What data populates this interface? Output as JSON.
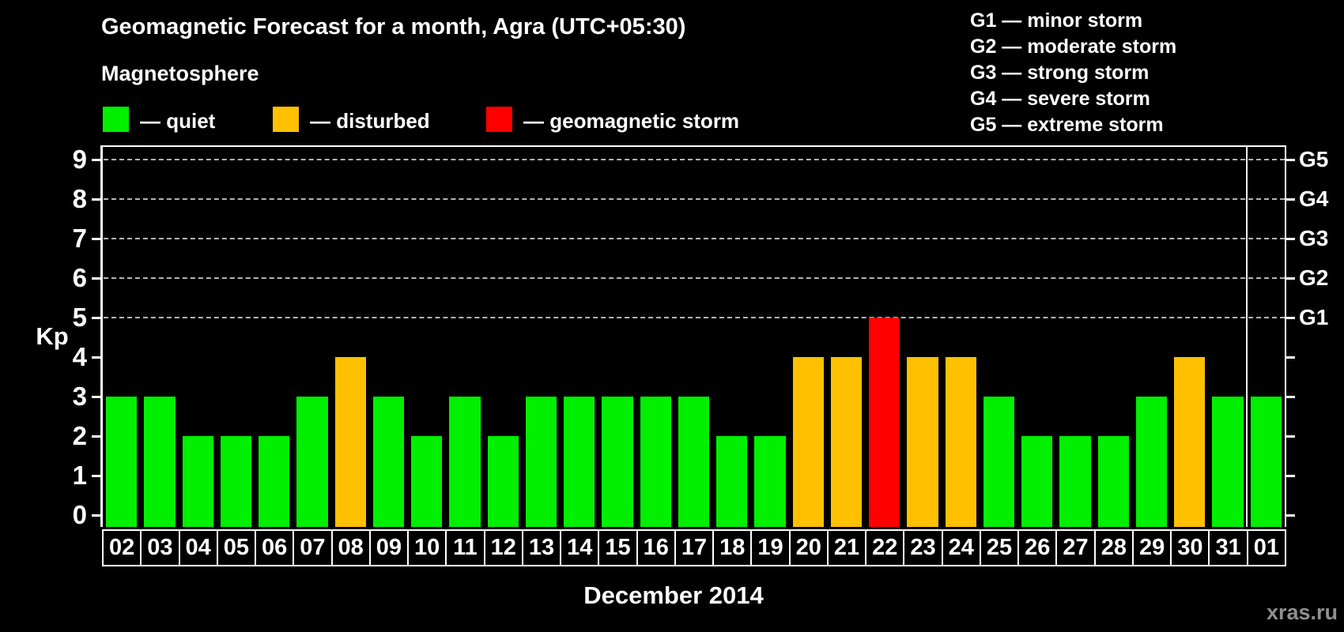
{
  "header": {
    "title": "Geomagnetic Forecast for a month, Agra (UTC+05:30)",
    "subtitle": "Magnetosphere",
    "legend_items": [
      {
        "key": "quiet",
        "label": "— quiet",
        "color": "#00f000"
      },
      {
        "key": "disturbed",
        "label": "— disturbed",
        "color": "#ffc000"
      },
      {
        "key": "storm",
        "label": "— geomagnetic storm",
        "color": "#ff0000"
      }
    ],
    "g_scale_legend": [
      "G1 — minor storm",
      "G2 — moderate storm",
      "G3 — strong storm",
      "G4 — severe storm",
      "G5 — extreme storm"
    ]
  },
  "chart_data": {
    "type": "bar",
    "title": "Geomagnetic Forecast for a month, Agra (UTC+05:30)",
    "categories": [
      "02",
      "03",
      "04",
      "05",
      "06",
      "07",
      "08",
      "09",
      "10",
      "11",
      "12",
      "13",
      "14",
      "15",
      "16",
      "17",
      "18",
      "19",
      "20",
      "21",
      "22",
      "23",
      "24",
      "25",
      "26",
      "27",
      "28",
      "29",
      "30",
      "31",
      "01"
    ],
    "values": [
      3,
      3,
      2,
      2,
      2,
      3,
      4,
      3,
      2,
      3,
      2,
      3,
      3,
      3,
      3,
      3,
      2,
      2,
      4,
      4,
      5,
      4,
      4,
      3,
      2,
      2,
      2,
      3,
      4,
      3,
      3
    ],
    "ylabel": "Kp",
    "xlabel": "December 2014",
    "ylim": [
      0,
      9
    ],
    "y_ticks": [
      0,
      1,
      2,
      3,
      4,
      5,
      6,
      7,
      8,
      9
    ],
    "gridlines_at": [
      5,
      6,
      7,
      8,
      9
    ],
    "right_axis_labels": [
      {
        "value": 5,
        "label": "G1"
      },
      {
        "value": 6,
        "label": "G2"
      },
      {
        "value": 7,
        "label": "G3"
      },
      {
        "value": 8,
        "label": "G4"
      },
      {
        "value": 9,
        "label": "G5"
      }
    ],
    "separator_after_index": 29,
    "colors": {
      "quiet": "#00f000",
      "disturbed": "#ffc000",
      "storm": "#ff0000"
    },
    "color_rules": {
      "storm_min_kp": 5,
      "disturbed_min_kp": 4
    },
    "grid": "dashed horizontal lines at G-storm levels only",
    "legend_position": "top-left"
  },
  "footer": {
    "watermark": "xras.ru"
  }
}
